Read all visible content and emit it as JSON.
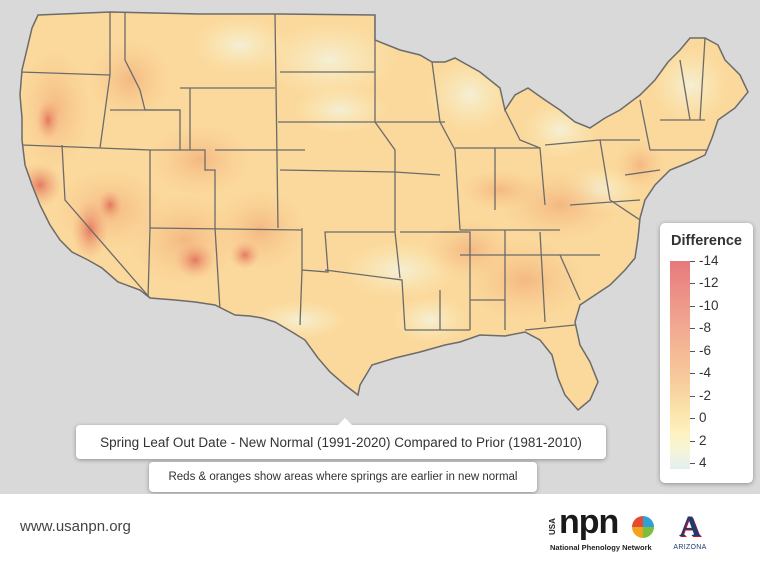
{
  "map": {
    "title": "Spring Leaf Out Date - New Normal (1991-2020) Compared to Prior (1981-2010)",
    "subtitle": "Reds & oranges show areas where springs are earlier in new normal",
    "region": "Contiguous United States",
    "colors": {
      "background": "#d9d9d9",
      "land_base": "#fbd79a",
      "state_border": "#6b6b6b"
    }
  },
  "legend": {
    "title": "Difference",
    "labels": [
      "-14",
      "-12",
      "-10",
      "-8",
      "-6",
      "-4",
      "-2",
      "0",
      "2",
      "4"
    ],
    "colors": [
      "#e6797b",
      "#f4b795",
      "#fbe1aa",
      "#fdf2c0",
      "#e2eff0"
    ]
  },
  "footer": {
    "url": "www.usanpn.org",
    "npn_usa": "USA",
    "npn_word": "npn",
    "npn_name": "National Phenology Network",
    "az_letter": "A",
    "az_name": "ARIZONA"
  }
}
